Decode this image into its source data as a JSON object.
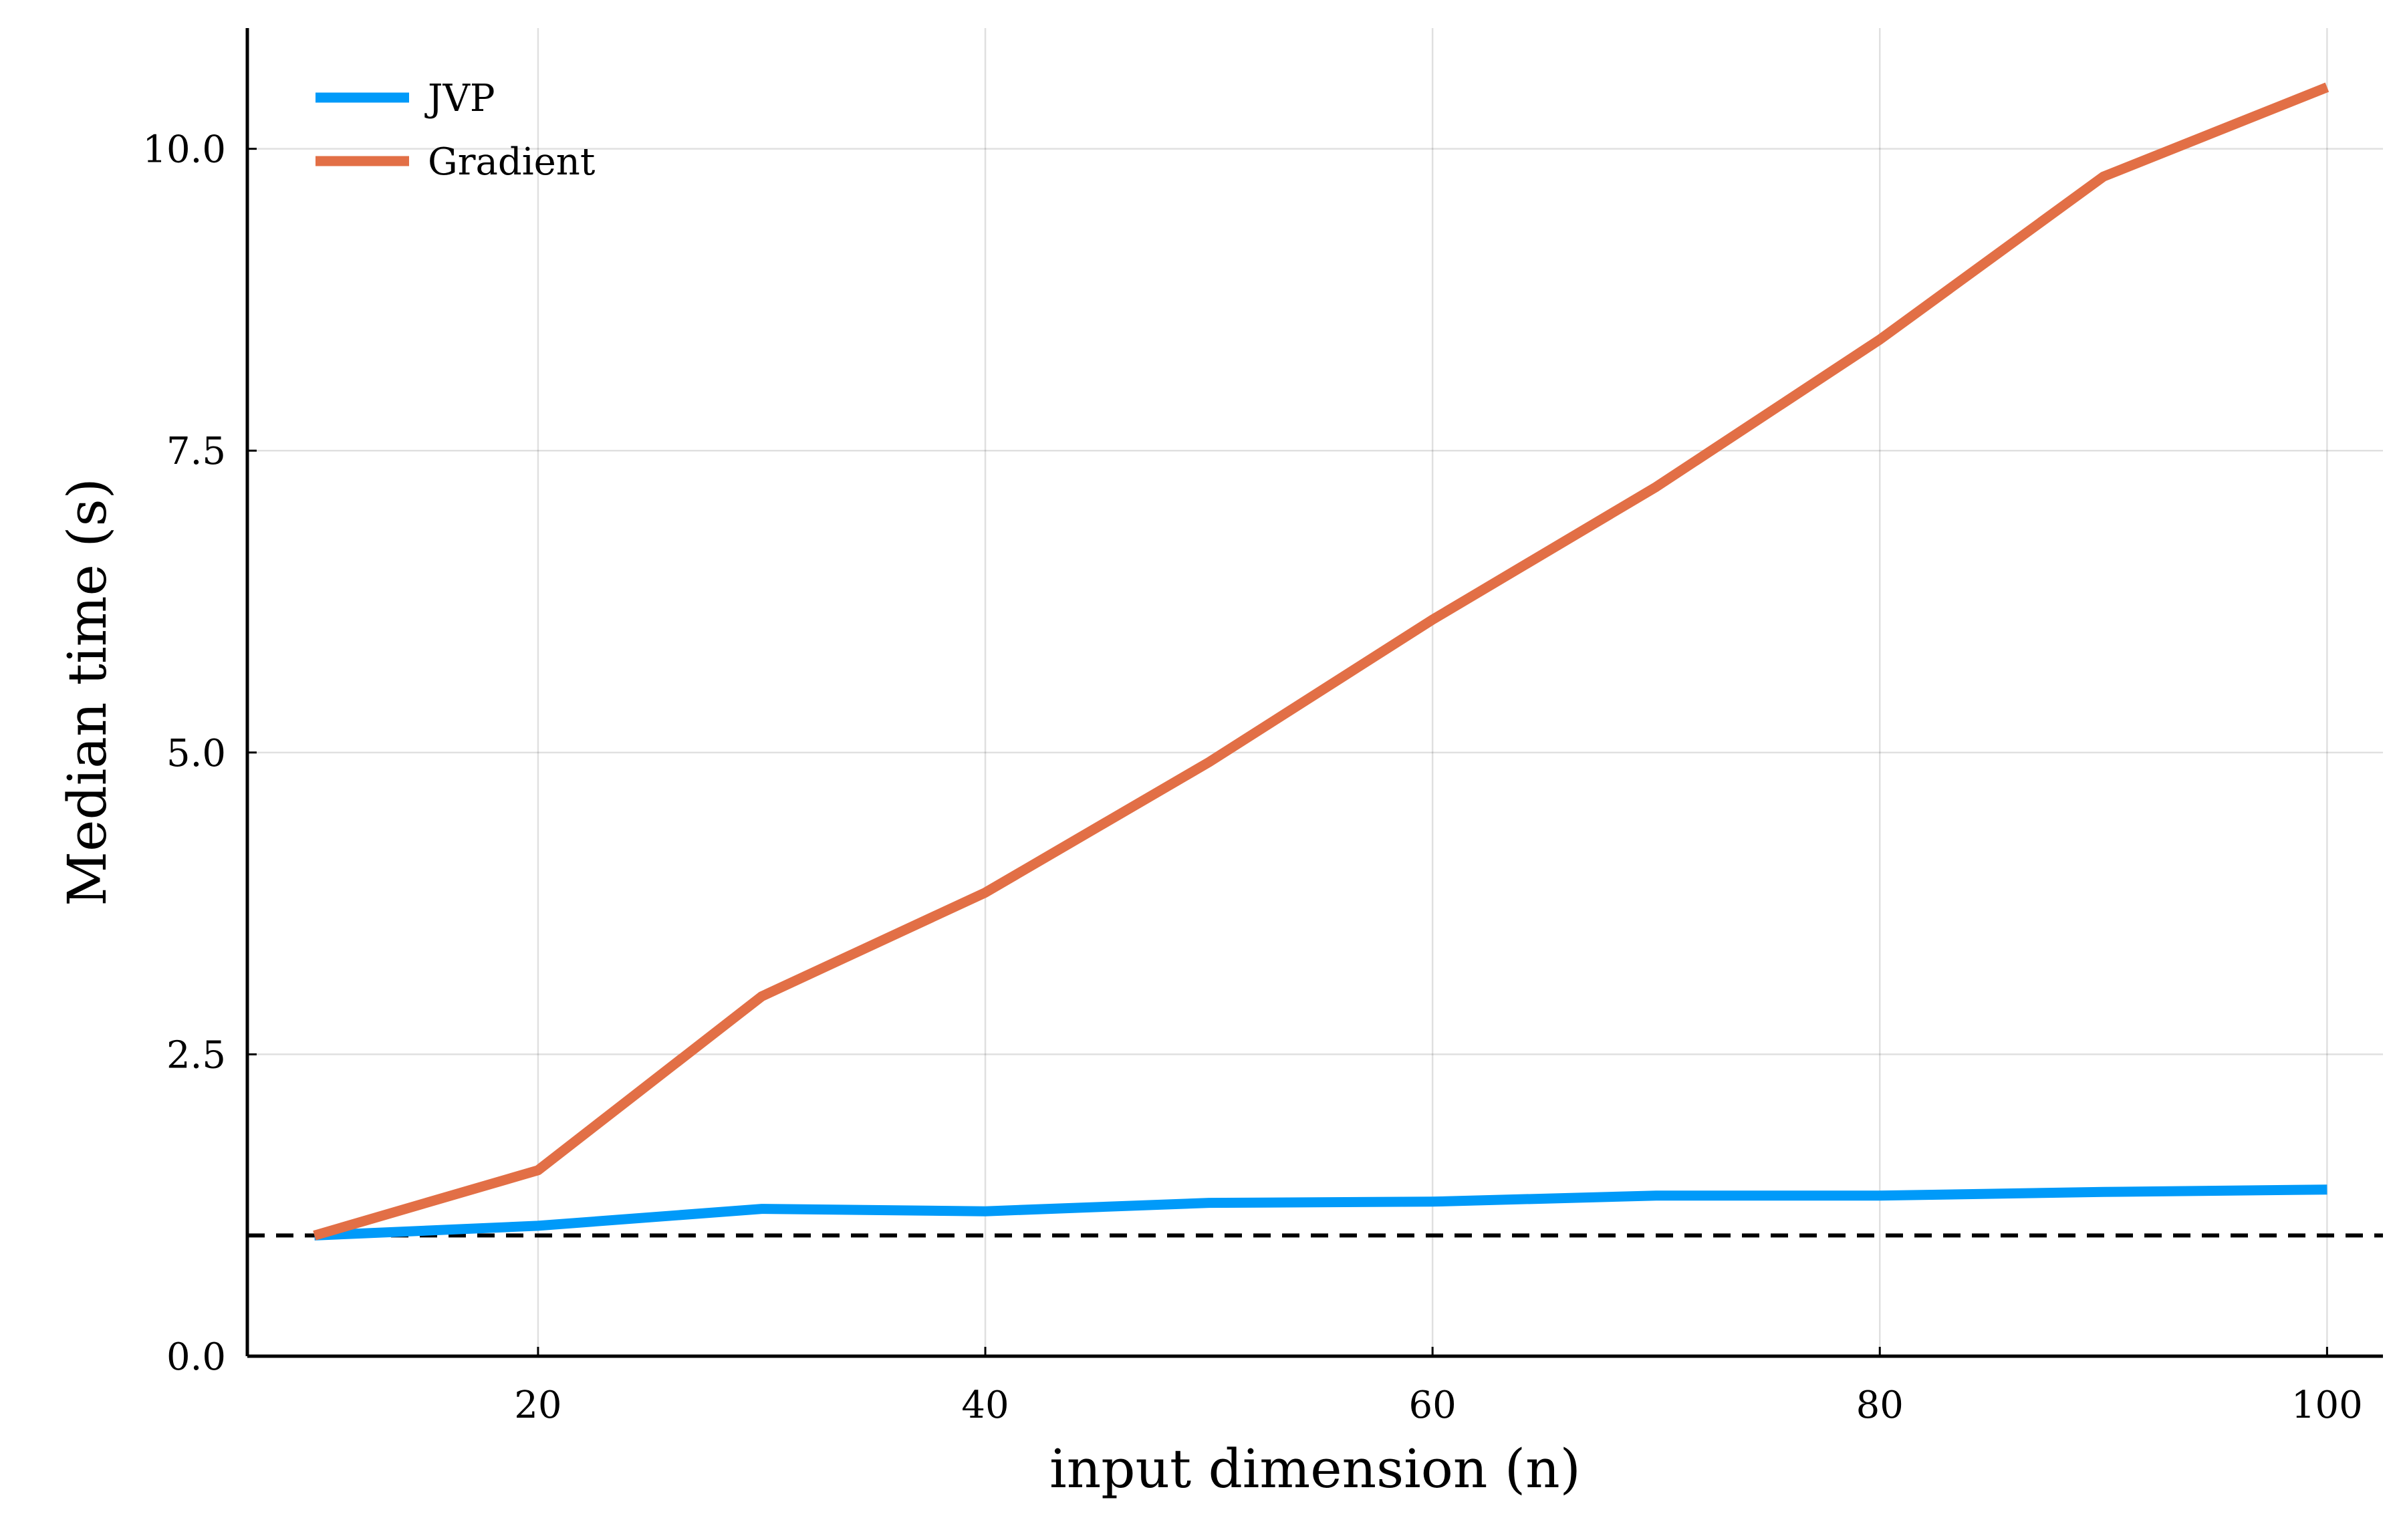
{
  "chart_data": {
    "type": "line",
    "title": "",
    "xlabel": "input dimension (n)",
    "ylabel": "Median time (s)",
    "x": [
      10,
      20,
      30,
      40,
      50,
      60,
      70,
      80,
      90,
      100
    ],
    "series": [
      {
        "name": "JVP",
        "color": "#009af9",
        "values": [
          1.0,
          1.08,
          1.22,
          1.2,
          1.27,
          1.28,
          1.33,
          1.33,
          1.36,
          1.38
        ]
      },
      {
        "name": "Gradient",
        "color": "#e26f46",
        "values": [
          1.0,
          1.54,
          2.98,
          3.84,
          4.92,
          6.1,
          7.2,
          8.42,
          9.77,
          10.51
        ]
      }
    ],
    "reference_line": {
      "y": 1.0,
      "style": "dashed",
      "color": "#000000"
    },
    "xlim": [
      7,
      102.5
    ],
    "ylim": [
      0,
      11
    ],
    "xticks": [
      20,
      40,
      60,
      80,
      100
    ],
    "xtick_labels": [
      "20",
      "40",
      "60",
      "80",
      "100"
    ],
    "yticks": [
      0,
      2.5,
      5,
      7.5,
      10
    ],
    "ytick_labels": [
      "0.0",
      "2.5",
      "5.0",
      "7.5",
      "10.0"
    ],
    "grid": true,
    "legend_position": "top-left"
  }
}
